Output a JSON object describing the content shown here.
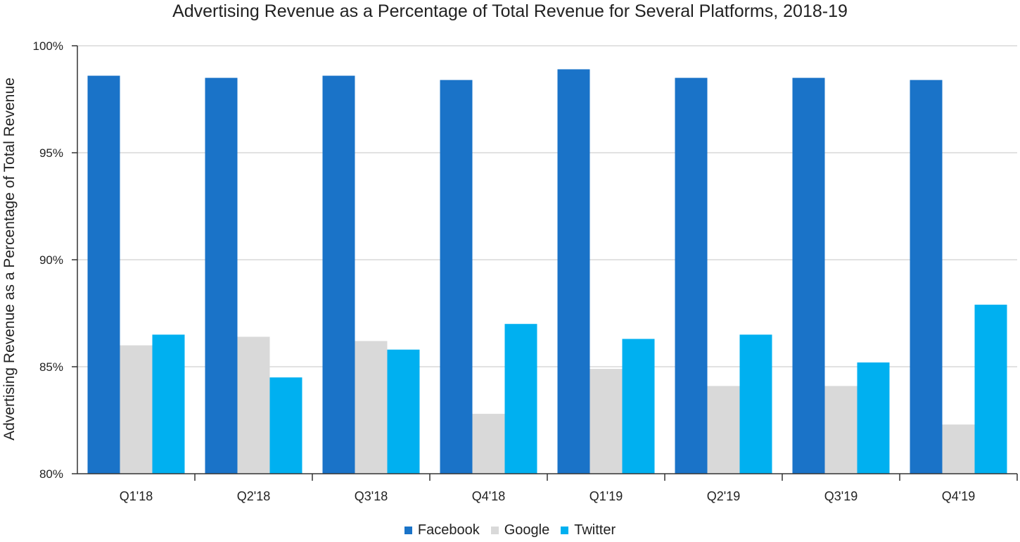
{
  "chart_data": {
    "type": "bar",
    "title": "Advertising Revenue as a Percentage of Total Revenue for Several Platforms, 2018-19",
    "xlabel": "",
    "ylabel": "Advertising Revenue as a Percentage of Total Revenue",
    "categories": [
      "Q1'18",
      "Q2'18",
      "Q3'18",
      "Q4'18",
      "Q1'19",
      "Q2'19",
      "Q3'19",
      "Q4'19"
    ],
    "ylim": [
      80,
      100
    ],
    "yticks": [
      "80%",
      "85%",
      "90%",
      "95%",
      "100%"
    ],
    "ytick_values": [
      80,
      85,
      90,
      95,
      100
    ],
    "grid": true,
    "legend_position": "bottom",
    "series": [
      {
        "name": "Facebook",
        "color": "#1a73c8",
        "values": [
          98.6,
          98.5,
          98.6,
          98.4,
          98.9,
          98.5,
          98.5,
          98.4
        ]
      },
      {
        "name": "Google",
        "color": "#d9d9d9",
        "values": [
          86.0,
          86.4,
          86.2,
          82.8,
          84.9,
          84.1,
          84.1,
          82.3
        ]
      },
      {
        "name": "Twitter",
        "color": "#00b0f0",
        "values": [
          86.5,
          84.5,
          85.8,
          87.0,
          86.3,
          86.5,
          85.2,
          87.9
        ]
      }
    ]
  }
}
